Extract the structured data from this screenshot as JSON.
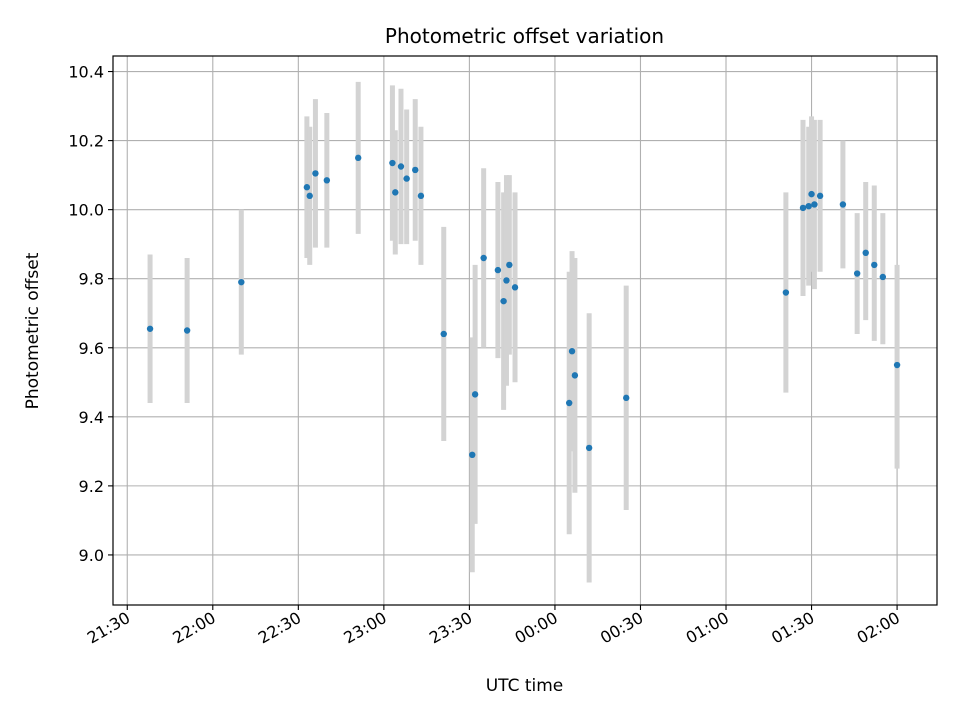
{
  "chart_data": {
    "type": "scatter",
    "title": "Photometric offset variation",
    "xlabel": "UTC time",
    "ylabel": "Photometric offset",
    "x_tick_labels": [
      "21:30",
      "22:00",
      "22:30",
      "23:00",
      "23:30",
      "00:00",
      "00:30",
      "01:00",
      "01:30",
      "02:00"
    ],
    "y_tick_labels": [
      "9.0",
      "9.2",
      "9.4",
      "9.6",
      "9.8",
      "10.0",
      "10.2",
      "10.4"
    ],
    "y_ticks": [
      9.0,
      9.2,
      9.4,
      9.6,
      9.8,
      10.0,
      10.2,
      10.4
    ],
    "xlim": [
      "21:25",
      "02:14"
    ],
    "ylim": [
      8.855,
      10.445
    ],
    "grid": true,
    "marker_color": "#1f77b4",
    "errorbar_color": "#d3d3d3",
    "points": [
      {
        "t": "21:38",
        "y": 9.655,
        "lo": 9.44,
        "hi": 9.87
      },
      {
        "t": "21:51",
        "y": 9.65,
        "lo": 9.44,
        "hi": 9.86
      },
      {
        "t": "22:10",
        "y": 9.79,
        "lo": 9.58,
        "hi": 10.0
      },
      {
        "t": "22:33",
        "y": 10.065,
        "lo": 9.86,
        "hi": 10.27
      },
      {
        "t": "22:34",
        "y": 10.04,
        "lo": 9.84,
        "hi": 10.24
      },
      {
        "t": "22:36",
        "y": 10.105,
        "lo": 9.89,
        "hi": 10.32
      },
      {
        "t": "22:40",
        "y": 10.085,
        "lo": 9.89,
        "hi": 10.28
      },
      {
        "t": "22:51",
        "y": 10.15,
        "lo": 9.93,
        "hi": 10.37
      },
      {
        "t": "23:03",
        "y": 10.135,
        "lo": 9.91,
        "hi": 10.36
      },
      {
        "t": "23:04",
        "y": 10.05,
        "lo": 9.87,
        "hi": 10.23
      },
      {
        "t": "23:06",
        "y": 10.125,
        "lo": 9.9,
        "hi": 10.35
      },
      {
        "t": "23:08",
        "y": 10.09,
        "lo": 9.9,
        "hi": 10.29
      },
      {
        "t": "23:11",
        "y": 10.115,
        "lo": 9.91,
        "hi": 10.32
      },
      {
        "t": "23:13",
        "y": 10.04,
        "lo": 9.84,
        "hi": 10.24
      },
      {
        "t": "23:21",
        "y": 9.64,
        "lo": 9.33,
        "hi": 9.95
      },
      {
        "t": "23:31",
        "y": 9.29,
        "lo": 8.95,
        "hi": 9.63
      },
      {
        "t": "23:32",
        "y": 9.465,
        "lo": 9.09,
        "hi": 9.84
      },
      {
        "t": "23:35",
        "y": 9.86,
        "lo": 9.6,
        "hi": 10.12
      },
      {
        "t": "23:40",
        "y": 9.825,
        "lo": 9.57,
        "hi": 10.08
      },
      {
        "t": "23:42",
        "y": 9.735,
        "lo": 9.42,
        "hi": 10.05
      },
      {
        "t": "23:43",
        "y": 9.795,
        "lo": 9.49,
        "hi": 10.1
      },
      {
        "t": "23:44",
        "y": 9.84,
        "lo": 9.58,
        "hi": 10.1
      },
      {
        "t": "23:46",
        "y": 9.775,
        "lo": 9.5,
        "hi": 10.05
      },
      {
        "t": "00:05",
        "y": 9.44,
        "lo": 9.06,
        "hi": 9.82
      },
      {
        "t": "00:06",
        "y": 9.59,
        "lo": 9.3,
        "hi": 9.88
      },
      {
        "t": "00:07",
        "y": 9.52,
        "lo": 9.18,
        "hi": 9.86
      },
      {
        "t": "00:12",
        "y": 9.31,
        "lo": 8.92,
        "hi": 9.7
      },
      {
        "t": "00:25",
        "y": 9.455,
        "lo": 9.13,
        "hi": 9.78
      },
      {
        "t": "01:21",
        "y": 9.76,
        "lo": 9.47,
        "hi": 10.05
      },
      {
        "t": "01:27",
        "y": 10.005,
        "lo": 9.75,
        "hi": 10.26
      },
      {
        "t": "01:29",
        "y": 10.01,
        "lo": 9.78,
        "hi": 10.24
      },
      {
        "t": "01:30",
        "y": 10.045,
        "lo": 9.82,
        "hi": 10.27
      },
      {
        "t": "01:31",
        "y": 10.015,
        "lo": 9.77,
        "hi": 10.26
      },
      {
        "t": "01:33",
        "y": 10.04,
        "lo": 9.82,
        "hi": 10.26
      },
      {
        "t": "01:41",
        "y": 10.015,
        "lo": 9.83,
        "hi": 10.2
      },
      {
        "t": "01:46",
        "y": 9.815,
        "lo": 9.64,
        "hi": 9.99
      },
      {
        "t": "01:49",
        "y": 9.875,
        "lo": 9.68,
        "hi": 10.08
      },
      {
        "t": "01:52",
        "y": 9.84,
        "lo": 9.62,
        "hi": 10.07
      },
      {
        "t": "01:55",
        "y": 9.805,
        "lo": 9.61,
        "hi": 9.99
      },
      {
        "t": "02:00",
        "y": 9.55,
        "lo": 9.25,
        "hi": 9.84
      }
    ]
  }
}
